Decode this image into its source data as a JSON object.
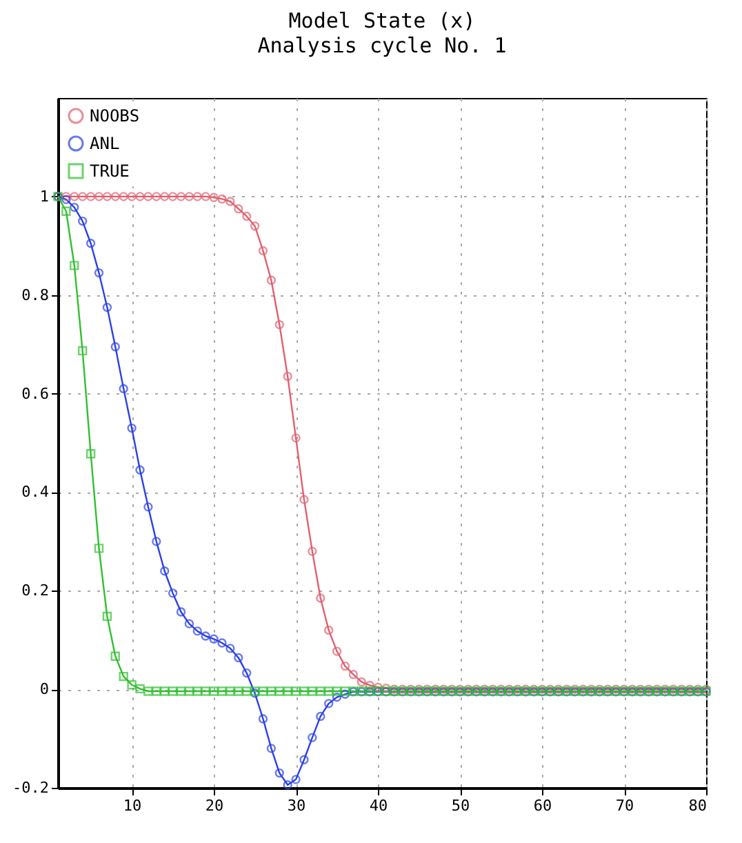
{
  "chart_data": {
    "type": "line",
    "title": "Model State (x)",
    "subtitle": "Analysis cycle No. 1",
    "x": [
      1,
      2,
      3,
      4,
      5,
      6,
      7,
      8,
      9,
      10,
      11,
      12,
      13,
      14,
      15,
      16,
      17,
      18,
      19,
      20,
      21,
      22,
      23,
      24,
      25,
      26,
      27,
      28,
      29,
      30,
      31,
      32,
      33,
      34,
      35,
      36,
      37,
      38,
      39,
      40,
      41,
      42,
      43,
      44,
      45,
      46,
      47,
      48,
      49,
      50,
      51,
      52,
      53,
      54,
      55,
      56,
      57,
      58,
      59,
      60,
      61,
      62,
      63,
      64,
      65,
      66,
      67,
      68,
      69,
      70,
      71,
      72,
      73,
      74,
      75,
      76,
      77,
      78,
      79,
      80
    ],
    "series": [
      {
        "name": "NOOBS",
        "color": "#e0606e",
        "marker": "circle",
        "values": [
          1,
          1,
          1,
          1,
          1,
          1,
          1,
          1,
          1,
          1,
          1,
          1,
          1,
          1,
          1,
          1,
          1,
          1,
          1,
          0.998,
          0.995,
          0.99,
          0.975,
          0.96,
          0.94,
          0.89,
          0.83,
          0.74,
          0.635,
          0.51,
          0.385,
          0.28,
          0.185,
          0.12,
          0.077,
          0.047,
          0.03,
          0.015,
          0.008,
          0.004,
          0.002,
          0,
          0,
          0,
          0,
          0,
          0,
          0,
          0,
          0,
          0,
          0,
          0,
          0,
          0,
          0,
          0,
          0,
          0,
          0,
          0,
          0,
          0,
          0,
          0,
          0,
          0,
          0,
          0,
          0,
          0,
          0,
          0,
          0,
          0,
          0,
          0,
          0,
          0,
          0
        ]
      },
      {
        "name": "ANL",
        "color": "#2a40e8",
        "marker": "circle",
        "values": [
          1,
          0.994,
          0.978,
          0.95,
          0.905,
          0.845,
          0.775,
          0.695,
          0.61,
          0.53,
          0.445,
          0.37,
          0.3,
          0.24,
          0.195,
          0.157,
          0.133,
          0.118,
          0.108,
          0.102,
          0.094,
          0.083,
          0.064,
          0.033,
          -0.008,
          -0.06,
          -0.12,
          -0.17,
          -0.194,
          -0.183,
          -0.143,
          -0.098,
          -0.055,
          -0.029,
          -0.016,
          -0.01,
          -0.005,
          -0.005,
          -0.005,
          -0.005,
          -0.005,
          -0.005,
          -0.005,
          -0.005,
          -0.005,
          -0.005,
          -0.005,
          -0.005,
          -0.005,
          -0.005,
          -0.005,
          -0.005,
          -0.005,
          -0.005,
          -0.005,
          -0.005,
          -0.005,
          -0.005,
          -0.005,
          -0.005,
          -0.005,
          -0.005,
          -0.005,
          -0.005,
          -0.005,
          -0.005,
          -0.005,
          -0.005,
          -0.005,
          -0.005,
          -0.005,
          -0.005,
          -0.005,
          -0.005,
          -0.005,
          -0.005,
          -0.005,
          -0.005,
          -0.005,
          -0.005
        ]
      },
      {
        "name": "TRUE",
        "color": "#30c030",
        "marker": "square",
        "values": [
          1,
          0.97,
          0.86,
          0.687,
          0.478,
          0.286,
          0.148,
          0.067,
          0.026,
          0.009,
          0.001,
          -0.004,
          -0.004,
          -0.004,
          -0.004,
          -0.004,
          -0.004,
          -0.004,
          -0.004,
          -0.004,
          -0.004,
          -0.004,
          -0.004,
          -0.004,
          -0.004,
          -0.004,
          -0.004,
          -0.004,
          -0.004,
          -0.004,
          -0.004,
          -0.004,
          -0.004,
          -0.004,
          -0.004,
          -0.004,
          -0.004,
          -0.004,
          -0.004,
          -0.004,
          -0.004,
          -0.004,
          -0.004,
          -0.004,
          -0.004,
          -0.004,
          -0.004,
          -0.004,
          -0.004,
          -0.004,
          -0.004,
          -0.004,
          -0.004,
          -0.004,
          -0.004,
          -0.004,
          -0.004,
          -0.004,
          -0.004,
          -0.004,
          -0.004,
          -0.004,
          -0.004,
          -0.004,
          -0.004,
          -0.004,
          -0.004,
          -0.004,
          -0.004,
          -0.004,
          -0.004,
          -0.004,
          -0.004,
          -0.004,
          -0.004,
          -0.004,
          -0.004,
          -0.004,
          -0.004,
          -0.004
        ]
      }
    ],
    "xlim": [
      1,
      80
    ],
    "xticks": [
      10,
      20,
      30,
      40,
      50,
      60,
      70,
      80
    ],
    "ylim": [
      -0.2,
      1.2
    ],
    "yticks": [
      -0.2,
      0,
      0.2,
      0.4,
      0.6,
      0.8,
      1
    ],
    "grid": true,
    "legend": "top left",
    "line_style": "solid"
  }
}
